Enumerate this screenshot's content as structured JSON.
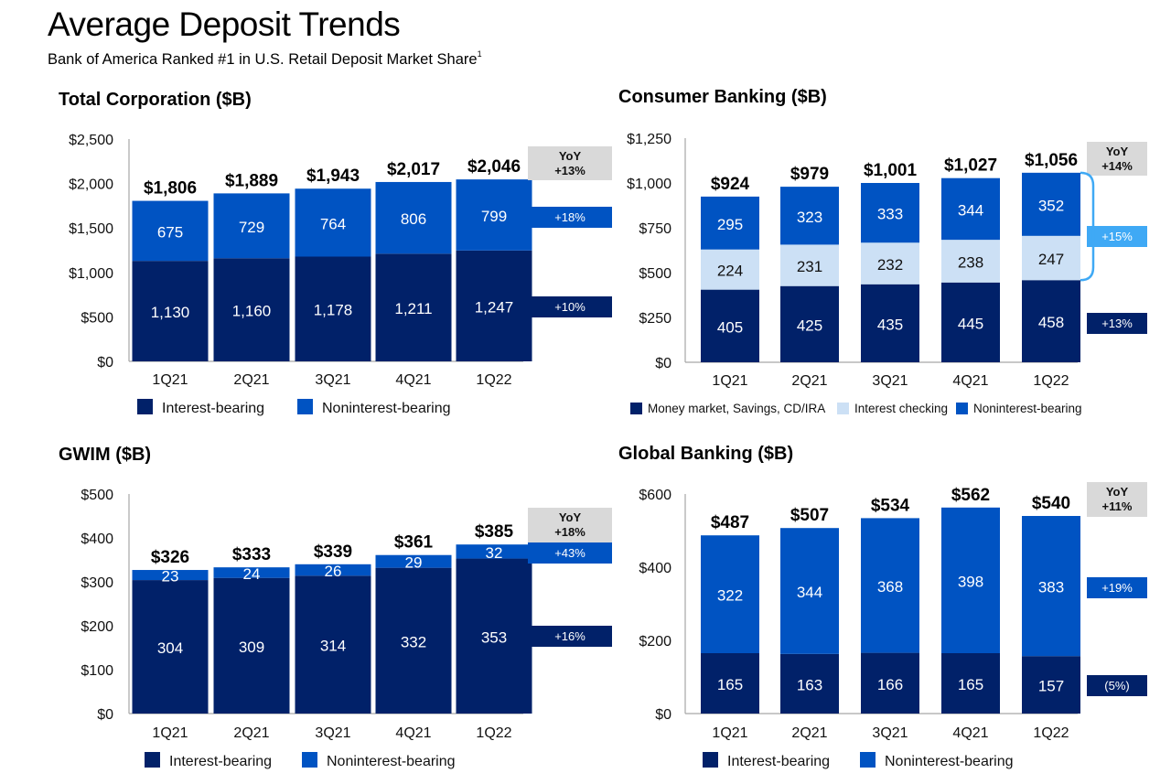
{
  "header": {
    "title": "Average Deposit Trends",
    "subtitle": "Bank of America Ranked #1 in U.S. Retail Deposit Market Share",
    "subtitle_footnote": "1"
  },
  "colors": {
    "interest_bearing": "#012169",
    "noninterest_bearing": "#0053C2",
    "interest_checking": "#CCE0F5",
    "bracket": "#3FA9F5",
    "yoy_box": "#D9D9D9",
    "axis": "#A6A6A6"
  },
  "chart_data": [
    {
      "id": "total-corporation",
      "type": "bar",
      "stacked": true,
      "title": "Total Corporation ($B)",
      "categories": [
        "1Q21",
        "2Q21",
        "3Q21",
        "4Q21",
        "1Q22"
      ],
      "ylim": [
        0,
        2500
      ],
      "yticks": [
        0,
        500,
        1000,
        1500,
        2000,
        2500
      ],
      "ytick_labels": [
        "$0",
        "$500",
        "$1,000",
        "$1,500",
        "$2,000",
        "$2,500"
      ],
      "series": [
        {
          "name": "Interest-bearing",
          "color_key": "interest_bearing",
          "label_color": "#ffffff",
          "values": [
            1130,
            1160,
            1178,
            1211,
            1247
          ],
          "labels": [
            "1,130",
            "1,160",
            "1,178",
            "1,211",
            "1,247"
          ]
        },
        {
          "name": "Noninterest-bearing",
          "color_key": "noninterest_bearing",
          "label_color": "#ffffff",
          "values": [
            675,
            729,
            764,
            806,
            799
          ],
          "labels": [
            "675",
            "729",
            "764",
            "806",
            "799"
          ]
        }
      ],
      "totals": [
        "$1,806",
        "$1,889",
        "$1,943",
        "$2,017",
        "$2,046"
      ],
      "yoy": {
        "label": "YoY",
        "total": "+13%",
        "series_changes": [
          {
            "series": "Interest-bearing",
            "value": "+10%"
          },
          {
            "series": "Noninterest-bearing",
            "value": "+18%"
          }
        ]
      },
      "legend": [
        "Interest-bearing",
        "Noninterest-bearing"
      ],
      "legend_position": "bottom",
      "grid": false
    },
    {
      "id": "consumer-banking",
      "type": "bar",
      "stacked": true,
      "title": "Consumer Banking ($B)",
      "categories": [
        "1Q21",
        "2Q21",
        "3Q21",
        "4Q21",
        "1Q22"
      ],
      "ylim": [
        0,
        1250
      ],
      "yticks": [
        0,
        250,
        500,
        750,
        1000,
        1250
      ],
      "ytick_labels": [
        "$0",
        "$250",
        "$500",
        "$750",
        "$1,000",
        "$1,250"
      ],
      "series": [
        {
          "name": "Money market, Savings, CD/IRA",
          "color_key": "interest_bearing",
          "label_color": "#ffffff",
          "values": [
            405,
            425,
            435,
            445,
            458
          ],
          "labels": [
            "405",
            "425",
            "435",
            "445",
            "458"
          ]
        },
        {
          "name": "Interest checking",
          "color_key": "interest_checking",
          "label_color": "#111111",
          "values": [
            224,
            231,
            232,
            238,
            247
          ],
          "labels": [
            "224",
            "231",
            "232",
            "238",
            "247"
          ]
        },
        {
          "name": "Noninterest-bearing",
          "color_key": "noninterest_bearing",
          "label_color": "#ffffff",
          "values": [
            295,
            323,
            333,
            344,
            352
          ],
          "labels": [
            "295",
            "323",
            "333",
            "344",
            "352"
          ]
        }
      ],
      "totals": [
        "$924",
        "$979",
        "$1,001",
        "$1,027",
        "$1,056"
      ],
      "yoy": {
        "label": "YoY",
        "total": "+14%",
        "series_changes": [
          {
            "series": "Money market, Savings, CD/IRA",
            "value": "+13%"
          },
          {
            "series": "Interest checking + Noninterest-bearing",
            "value": "+15%"
          }
        ]
      },
      "legend": [
        "Money market, Savings, CD/IRA",
        "Interest checking",
        "Noninterest-bearing"
      ],
      "legend_position": "bottom",
      "grid": false
    },
    {
      "id": "gwim",
      "type": "bar",
      "stacked": true,
      "title": "GWIM ($B)",
      "categories": [
        "1Q21",
        "2Q21",
        "3Q21",
        "4Q21",
        "1Q22"
      ],
      "ylim": [
        0,
        500
      ],
      "yticks": [
        0,
        100,
        200,
        300,
        400,
        500
      ],
      "ytick_labels": [
        "$0",
        "$100",
        "$200",
        "$300",
        "$400",
        "$500"
      ],
      "series": [
        {
          "name": "Interest-bearing",
          "color_key": "interest_bearing",
          "label_color": "#ffffff",
          "values": [
            304,
            309,
            314,
            332,
            353
          ],
          "labels": [
            "304",
            "309",
            "314",
            "332",
            "353"
          ]
        },
        {
          "name": "Noninterest-bearing",
          "color_key": "noninterest_bearing",
          "label_color": "#ffffff",
          "values": [
            23,
            24,
            26,
            29,
            32
          ],
          "labels": [
            "23",
            "24",
            "26",
            "29",
            "32"
          ]
        }
      ],
      "totals": [
        "$326",
        "$333",
        "$339",
        "$361",
        "$385"
      ],
      "yoy": {
        "label": "YoY",
        "total": "+18%",
        "series_changes": [
          {
            "series": "Interest-bearing",
            "value": "+16%"
          },
          {
            "series": "Noninterest-bearing",
            "value": "+43%"
          }
        ]
      },
      "legend": [
        "Interest-bearing",
        "Noninterest-bearing"
      ],
      "legend_position": "bottom",
      "grid": false
    },
    {
      "id": "global-banking",
      "type": "bar",
      "stacked": true,
      "title": "Global Banking ($B)",
      "categories": [
        "1Q21",
        "2Q21",
        "3Q21",
        "4Q21",
        "1Q22"
      ],
      "ylim": [
        0,
        600
      ],
      "yticks": [
        0,
        200,
        400,
        600
      ],
      "ytick_labels": [
        "$0",
        "$200",
        "$400",
        "$600"
      ],
      "series": [
        {
          "name": "Interest-bearing",
          "color_key": "interest_bearing",
          "label_color": "#ffffff",
          "values": [
            165,
            163,
            166,
            165,
            157
          ],
          "labels": [
            "165",
            "163",
            "166",
            "165",
            "157"
          ]
        },
        {
          "name": "Noninterest-bearing",
          "color_key": "noninterest_bearing",
          "label_color": "#ffffff",
          "values": [
            322,
            344,
            368,
            398,
            383
          ],
          "labels": [
            "322",
            "344",
            "368",
            "398",
            "383"
          ]
        }
      ],
      "totals": [
        "$487",
        "$507",
        "$534",
        "$562",
        "$540"
      ],
      "yoy": {
        "label": "YoY",
        "total": "+11%",
        "series_changes": [
          {
            "series": "Interest-bearing",
            "value": "(5%)"
          },
          {
            "series": "Noninterest-bearing",
            "value": "+19%"
          }
        ]
      },
      "legend": [
        "Interest-bearing",
        "Noninterest-bearing"
      ],
      "legend_position": "bottom",
      "grid": false
    }
  ]
}
